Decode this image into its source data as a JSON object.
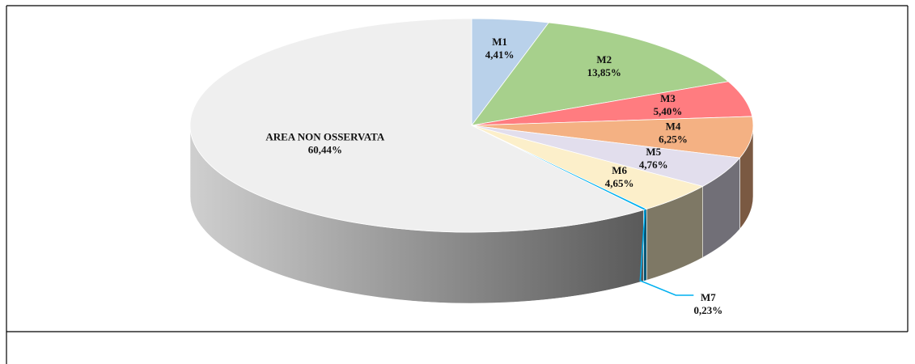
{
  "chart_data": {
    "type": "pie",
    "categories": [
      "M1",
      "M2",
      "M3",
      "M4",
      "M5",
      "M6",
      "M7",
      "AREA NON OSSERVATA"
    ],
    "values": [
      4.41,
      13.85,
      5.4,
      6.25,
      4.76,
      4.65,
      0.23,
      60.44
    ],
    "value_labels": [
      "4,41%",
      "13,85%",
      "5,40%",
      "6,25%",
      "4,76%",
      "4,65%",
      "0,23%",
      "60,44%"
    ],
    "colors": [
      "#b9d1ea",
      "#a7d08c",
      "#ff7c80",
      "#f4b183",
      "#e2deed",
      "#fcefca",
      "#00b0f0",
      "#efefef"
    ]
  }
}
